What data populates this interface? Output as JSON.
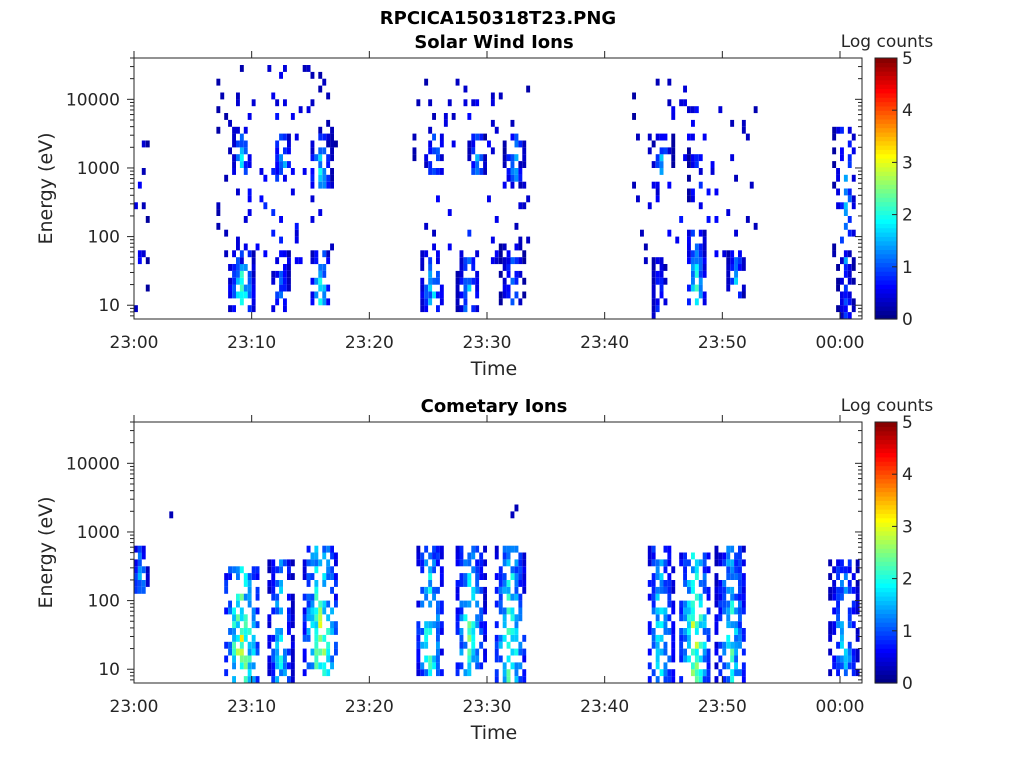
{
  "figure_title": "RPCICA150318T23.PNG",
  "chart_data": [
    {
      "type": "heatmap",
      "title": "Solar Wind Ions",
      "xlabel": "Time",
      "ylabel": "Energy (eV)",
      "x_ticks": [
        {
          "minute": 0,
          "label": "23:00"
        },
        {
          "minute": 10,
          "label": "23:10"
        },
        {
          "minute": 20,
          "label": "23:20"
        },
        {
          "minute": 30,
          "label": "23:30"
        },
        {
          "minute": 40,
          "label": "23:40"
        },
        {
          "minute": 50,
          "label": "23:50"
        },
        {
          "minute": 60,
          "label": "00:00"
        }
      ],
      "xlim_minutes": [
        0,
        62
      ],
      "y_scale": "log",
      "ylim": [
        6.3,
        40000
      ],
      "y_ticks": [
        {
          "value": 10,
          "label": "10"
        },
        {
          "value": 100,
          "label": "100"
        },
        {
          "value": 1000,
          "label": "1000"
        },
        {
          "value": 10000,
          "label": "10000"
        }
      ],
      "colorbar": {
        "label": "Log counts",
        "range": [
          0,
          5
        ],
        "ticks": [
          "0",
          "1",
          "2",
          "3",
          "4",
          "5"
        ],
        "colormap": "jet"
      },
      "clusters": [
        {
          "t": 0.3,
          "dt": 0.5,
          "e_lo": 8,
          "e_hi": 10000,
          "peak": 1.0,
          "density": 0.15,
          "seed": 1
        },
        {
          "t": 9.0,
          "dt": 0.8,
          "e_lo": 8,
          "e_hi": 40,
          "peak": 2.6,
          "density": 0.7,
          "seed": 2
        },
        {
          "t": 12.3,
          "dt": 0.6,
          "e_lo": 8,
          "e_hi": 40,
          "peak": 1.5,
          "density": 0.6,
          "seed": 3
        },
        {
          "t": 15.7,
          "dt": 0.6,
          "e_lo": 10,
          "e_hi": 40,
          "peak": 2.6,
          "density": 0.7,
          "seed": 4
        },
        {
          "t": 12.0,
          "dt": 4.8,
          "e_lo": 40,
          "e_hi": 20000,
          "peak": 1.0,
          "density": 0.09,
          "seed": 5
        },
        {
          "t": 9.0,
          "dt": 0.6,
          "e_lo": 800,
          "e_hi": 2000,
          "peak": 2.0,
          "density": 0.5,
          "seed": 6
        },
        {
          "t": 12.5,
          "dt": 0.5,
          "e_lo": 800,
          "e_hi": 2000,
          "peak": 2.0,
          "density": 0.5,
          "seed": 7
        },
        {
          "t": 15.7,
          "dt": 0.7,
          "e_lo": 600,
          "e_hi": 2500,
          "peak": 2.1,
          "density": 0.5,
          "seed": 8
        },
        {
          "t": 25.2,
          "dt": 0.7,
          "e_lo": 8,
          "e_hi": 50,
          "peak": 2.2,
          "density": 0.6,
          "seed": 9
        },
        {
          "t": 28.3,
          "dt": 0.7,
          "e_lo": 8,
          "e_hi": 50,
          "peak": 2.0,
          "density": 0.6,
          "seed": 10
        },
        {
          "t": 32.0,
          "dt": 0.7,
          "e_lo": 10,
          "e_hi": 60,
          "peak": 1.6,
          "density": 0.6,
          "seed": 11
        },
        {
          "t": 28.5,
          "dt": 4.8,
          "e_lo": 40,
          "e_hi": 15000,
          "peak": 1.0,
          "density": 0.08,
          "seed": 12
        },
        {
          "t": 25.4,
          "dt": 0.6,
          "e_lo": 800,
          "e_hi": 2500,
          "peak": 2.0,
          "density": 0.5,
          "seed": 13
        },
        {
          "t": 29.0,
          "dt": 0.5,
          "e_lo": 800,
          "e_hi": 2500,
          "peak": 2.0,
          "density": 0.5,
          "seed": 14
        },
        {
          "t": 32.2,
          "dt": 0.6,
          "e_lo": 700,
          "e_hi": 2500,
          "peak": 2.1,
          "density": 0.5,
          "seed": 15
        },
        {
          "t": 44.5,
          "dt": 0.5,
          "e_lo": 7,
          "e_hi": 40,
          "peak": 1.2,
          "density": 0.6,
          "seed": 16
        },
        {
          "t": 47.6,
          "dt": 0.6,
          "e_lo": 10,
          "e_hi": 80,
          "peak": 2.6,
          "density": 0.7,
          "seed": 17
        },
        {
          "t": 51.0,
          "dt": 0.5,
          "e_lo": 15,
          "e_hi": 60,
          "peak": 2.0,
          "density": 0.6,
          "seed": 18
        },
        {
          "t": 47.5,
          "dt": 5.0,
          "e_lo": 40,
          "e_hi": 15000,
          "peak": 1.0,
          "density": 0.08,
          "seed": 19
        },
        {
          "t": 44.8,
          "dt": 0.6,
          "e_lo": 800,
          "e_hi": 2000,
          "peak": 2.0,
          "density": 0.5,
          "seed": 20
        },
        {
          "t": 47.6,
          "dt": 0.4,
          "e_lo": 300,
          "e_hi": 1500,
          "peak": 1.6,
          "density": 0.4,
          "seed": 21
        },
        {
          "t": 60.4,
          "dt": 0.5,
          "e_lo": 7,
          "e_hi": 40,
          "peak": 1.2,
          "density": 0.6,
          "seed": 22
        },
        {
          "t": 60.3,
          "dt": 0.7,
          "e_lo": 40,
          "e_hi": 3000,
          "peak": 1.8,
          "density": 0.3,
          "seed": 23
        }
      ]
    },
    {
      "type": "heatmap",
      "title": "Cometary Ions",
      "xlabel": "Time",
      "ylabel": "Energy (eV)",
      "x_ticks": [
        {
          "minute": 0,
          "label": "23:00"
        },
        {
          "minute": 10,
          "label": "23:10"
        },
        {
          "minute": 20,
          "label": "23:20"
        },
        {
          "minute": 30,
          "label": "23:30"
        },
        {
          "minute": 40,
          "label": "23:40"
        },
        {
          "minute": 50,
          "label": "23:50"
        },
        {
          "minute": 60,
          "label": "00:00"
        }
      ],
      "xlim_minutes": [
        0,
        62
      ],
      "y_scale": "log",
      "ylim": [
        6.3,
        40000
      ],
      "y_ticks": [
        {
          "value": 10,
          "label": "10"
        },
        {
          "value": 100,
          "label": "100"
        },
        {
          "value": 1000,
          "label": "1000"
        },
        {
          "value": 10000,
          "label": "10000"
        }
      ],
      "colorbar": {
        "label": "Log counts",
        "range": [
          0,
          5
        ],
        "ticks": [
          "0",
          "1",
          "2",
          "3",
          "4",
          "5"
        ],
        "colormap": "jet"
      },
      "clusters": [
        {
          "t": 0.4,
          "dt": 0.5,
          "e_lo": 150,
          "e_hi": 450,
          "peak": 2.0,
          "density": 0.7,
          "seed": 31
        },
        {
          "t": 9.0,
          "dt": 1.3,
          "e_lo": 7,
          "e_hi": 250,
          "peak": 3.5,
          "density": 0.6,
          "seed": 32
        },
        {
          "t": 12.3,
          "dt": 0.8,
          "e_lo": 7,
          "e_hi": 300,
          "peak": 2.4,
          "density": 0.55,
          "seed": 33
        },
        {
          "t": 15.7,
          "dt": 1.2,
          "e_lo": 7,
          "e_hi": 400,
          "peak": 3.4,
          "density": 0.6,
          "seed": 34
        },
        {
          "t": 25.0,
          "dt": 0.9,
          "e_lo": 8,
          "e_hi": 400,
          "peak": 2.8,
          "density": 0.6,
          "seed": 35
        },
        {
          "t": 28.4,
          "dt": 1.0,
          "e_lo": 8,
          "e_hi": 450,
          "peak": 2.8,
          "density": 0.6,
          "seed": 36
        },
        {
          "t": 31.8,
          "dt": 1.0,
          "e_lo": 7,
          "e_hi": 450,
          "peak": 3.2,
          "density": 0.6,
          "seed": 37
        },
        {
          "t": 44.6,
          "dt": 0.9,
          "e_lo": 7,
          "e_hi": 400,
          "peak": 2.5,
          "density": 0.6,
          "seed": 38
        },
        {
          "t": 47.5,
          "dt": 1.0,
          "e_lo": 7,
          "e_hi": 350,
          "peak": 3.6,
          "density": 0.6,
          "seed": 39
        },
        {
          "t": 50.6,
          "dt": 1.0,
          "e_lo": 7,
          "e_hi": 400,
          "peak": 2.6,
          "density": 0.6,
          "seed": 40
        },
        {
          "t": 60.2,
          "dt": 0.9,
          "e_lo": 8,
          "e_hi": 300,
          "peak": 2.2,
          "density": 0.6,
          "seed": 41
        },
        {
          "t": 20.0,
          "dt": 35,
          "e_lo": 1000,
          "e_hi": 2500,
          "peak": 0.6,
          "density": 0.004,
          "seed": 42
        }
      ]
    }
  ]
}
